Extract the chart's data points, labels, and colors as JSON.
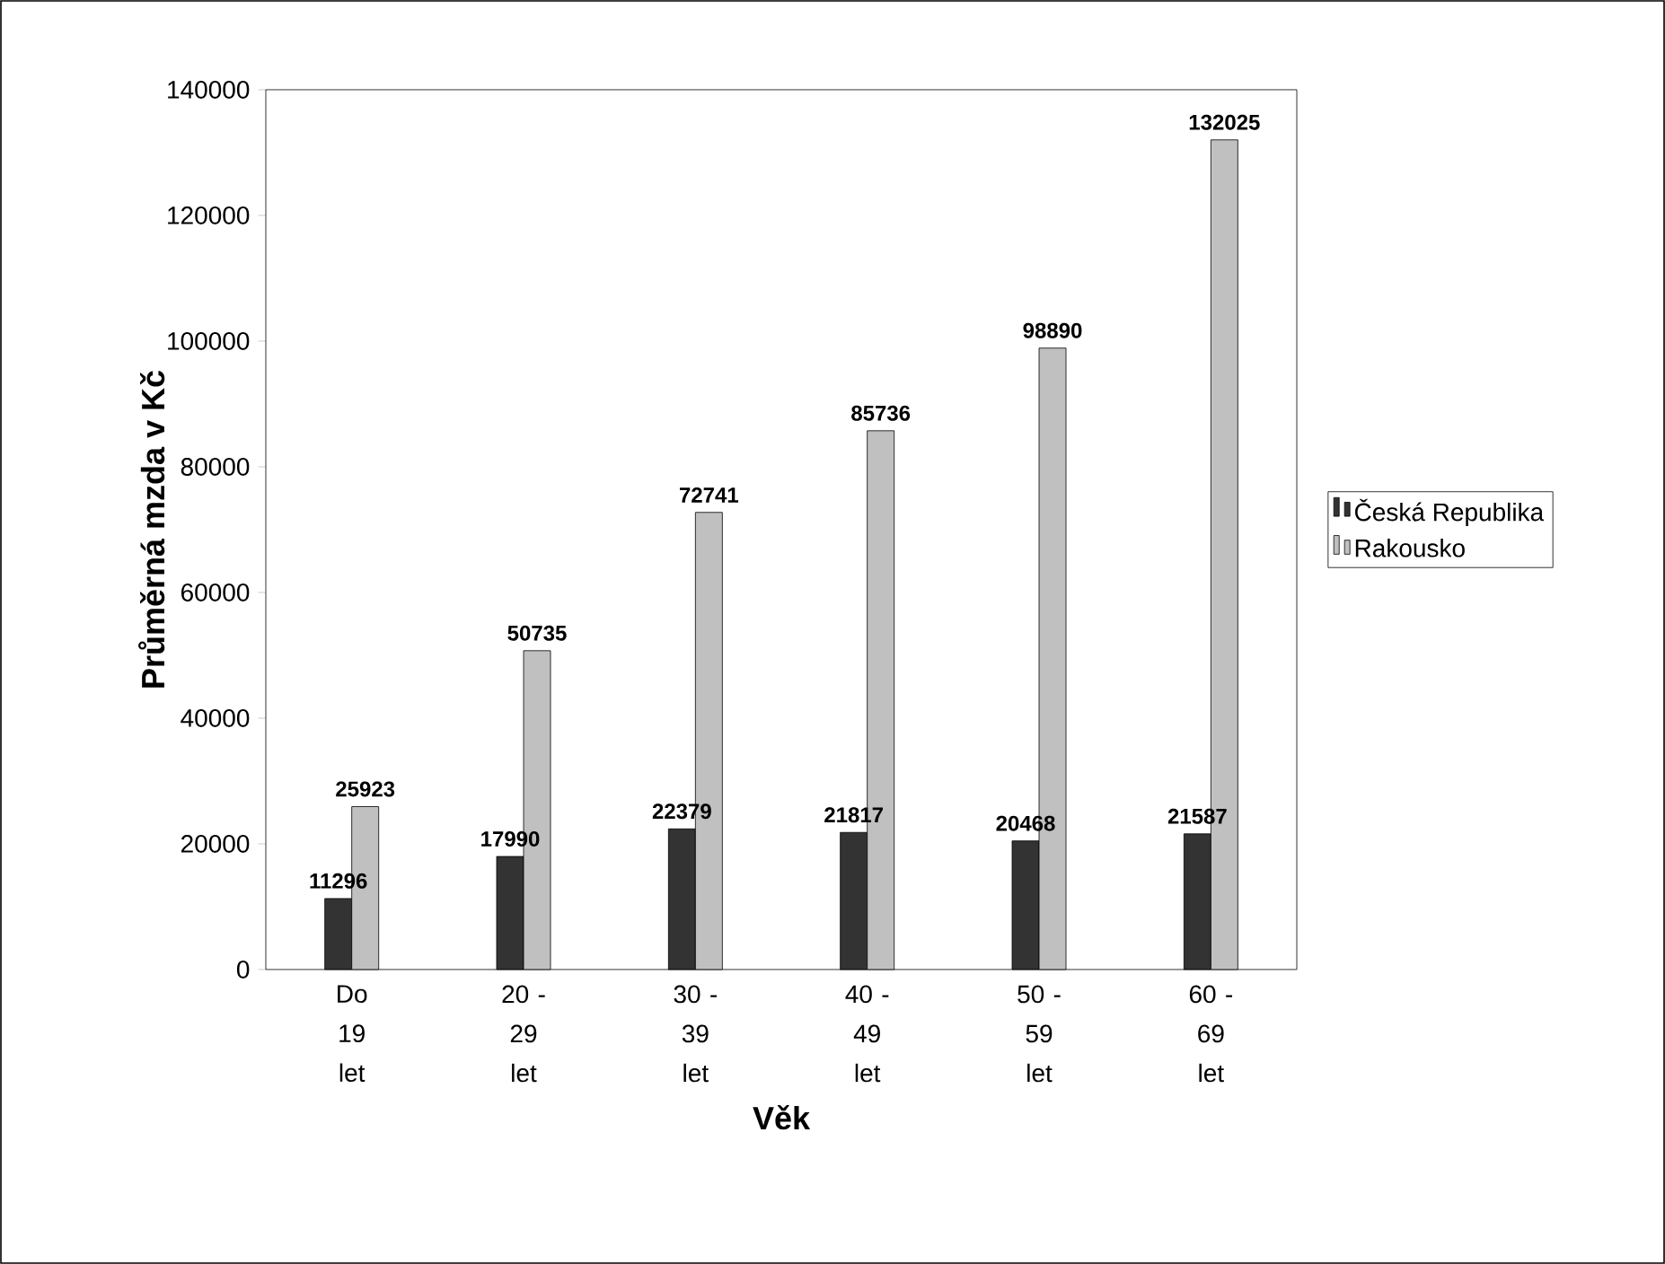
{
  "chart_data": {
    "type": "bar",
    "xlabel": "Věk",
    "ylabel": "Průměrná mzda v Kč",
    "categories": [
      "Do 19 let",
      "20 - 29 let",
      "30 - 39 let",
      "40 - 49 let",
      "50 - 59 let",
      "60 - 69 let"
    ],
    "series": [
      {
        "name": "Česká Republika",
        "color": "#333333",
        "values": [
          11296,
          17990,
          22379,
          21817,
          20468,
          21587
        ]
      },
      {
        "name": "Rakousko",
        "color": "#c0c0c0",
        "values": [
          25923,
          50735,
          72741,
          85736,
          98890,
          132025
        ]
      }
    ],
    "ylim": [
      0,
      140000
    ],
    "yticks": [
      0,
      20000,
      40000,
      60000,
      80000,
      100000,
      120000,
      140000
    ],
    "data_labels": true,
    "legend": "right",
    "grid": false
  }
}
